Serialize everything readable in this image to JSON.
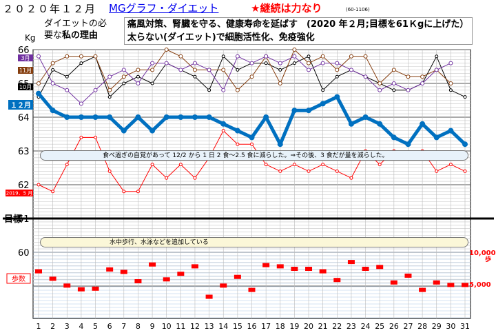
{
  "header": {
    "title": "２０２０年１２月",
    "link": "MGグラフ・ダイエット",
    "slogan": "★継続は力なり",
    "code": "(60-1106)"
  },
  "reason": {
    "label_line1": "ダイエットの必",
    "label_line2_a": "要な",
    "label_line2_b": "私の理由",
    "line1": "痛風対策、腎臓を守る、健康寿命を延ばす　(2020 年２月;目標を61Ｋgに上げた）",
    "line2": "太らない(ダイエット)で細胞活性化、免疫強化"
  },
  "notes": {
    "weight": "食べ過ぎの自覚があって 12/2 から 1 日 2 食～2.5 食に減らした。⇒その後、3 食だが量を減らした。",
    "steps": "水中歩行、水泳などを追加している"
  },
  "chart_data": {
    "type": "line",
    "ylabel": "Kg",
    "ylim": [
      59.0,
      66.0
    ],
    "yticks": [
      "66",
      "65",
      "64",
      "63",
      "62",
      "61",
      "60"
    ],
    "target_label": "目標",
    "target_value": 61,
    "x": [
      1,
      2,
      3,
      4,
      5,
      6,
      7,
      8,
      9,
      10,
      11,
      12,
      13,
      14,
      15,
      16,
      17,
      18,
      19,
      20,
      21,
      22,
      23,
      24,
      25,
      26,
      27,
      28,
      29,
      30,
      31
    ],
    "series": [
      {
        "name": "１２月",
        "color": "#0070c0",
        "values": [
          64.7,
          64.2,
          64.0,
          64.0,
          64.0,
          64.0,
          63.6,
          64.0,
          63.6,
          64.0,
          64.0,
          64.0,
          64.0,
          63.8,
          63.6,
          63.4,
          64.0,
          63.2,
          64.2,
          64.2,
          64.4,
          64.6,
          63.8,
          64.0,
          63.8,
          63.4,
          63.2,
          63.8,
          63.4,
          63.6,
          63.2
        ]
      },
      {
        "name": "3月",
        "color": "#7030a0",
        "values": [
          65.8,
          65.0,
          64.8,
          64.4,
          64.8,
          65.2,
          65.4,
          65.0,
          65.6,
          65.6,
          65.4,
          65.6,
          65.4,
          64.8,
          65.8,
          65.6,
          65.8,
          65.6,
          65.8,
          65.4,
          65.6,
          65.6,
          65.4,
          65.2,
          64.8,
          65.0,
          64.8,
          65.0,
          65.4,
          65.6,
          null
        ]
      },
      {
        "name": "11月",
        "color": "#843c0c",
        "values": [
          65.0,
          65.6,
          65.8,
          65.8,
          65.8,
          64.8,
          65.2,
          65.4,
          65.4,
          66.0,
          65.8,
          65.4,
          65.4,
          65.4,
          64.8,
          65.2,
          65.8,
          65.0,
          66.0,
          65.6,
          65.8,
          65.4,
          65.8,
          65.8,
          65.0,
          65.4,
          65.2,
          65.2,
          65.4,
          65.0,
          null
        ]
      },
      {
        "name": "10月",
        "color": "#000000",
        "values": [
          64.6,
          65.4,
          65.2,
          65.6,
          65.8,
          64.6,
          65.0,
          65.2,
          65.0,
          65.6,
          65.4,
          65.2,
          64.8,
          65.8,
          65.4,
          65.6,
          65.6,
          65.4,
          65.6,
          65.8,
          64.8,
          65.2,
          65.4,
          65.2,
          65.0,
          64.8,
          64.8,
          65.0,
          65.8,
          64.8,
          64.6
        ]
      },
      {
        "name": "2019．5 月",
        "color": "#ff0000",
        "values": [
          62.0,
          61.8,
          62.6,
          63.4,
          63.4,
          62.4,
          61.8,
          61.8,
          62.6,
          62.2,
          62.6,
          62.2,
          62.8,
          63.6,
          63.2,
          63.2,
          62.6,
          62.4,
          62.6,
          62.4,
          62.6,
          62.4,
          62.2,
          63.0,
          62.6,
          63.0,
          62.8,
          63.0,
          62.4,
          62.6,
          62.4
        ]
      }
    ],
    "steps": {
      "name": "歩数",
      "color": "#ff0000",
      "axis_label": "10,000\n歩",
      "axis_top": "10,000",
      "axis_unit": "歩",
      "axis_mid": "5,000",
      "ylim": [
        0,
        11000
      ],
      "values": [
        7600,
        6400,
        5300,
        4700,
        4800,
        7900,
        7500,
        6000,
        8700,
        6300,
        7200,
        8400,
        3500,
        5300,
        6700,
        4600,
        8600,
        8400,
        8000,
        8000,
        7600,
        6200,
        9100,
        8000,
        8300,
        5800,
        6900,
        4600,
        5800,
        5400,
        5400
      ]
    }
  }
}
